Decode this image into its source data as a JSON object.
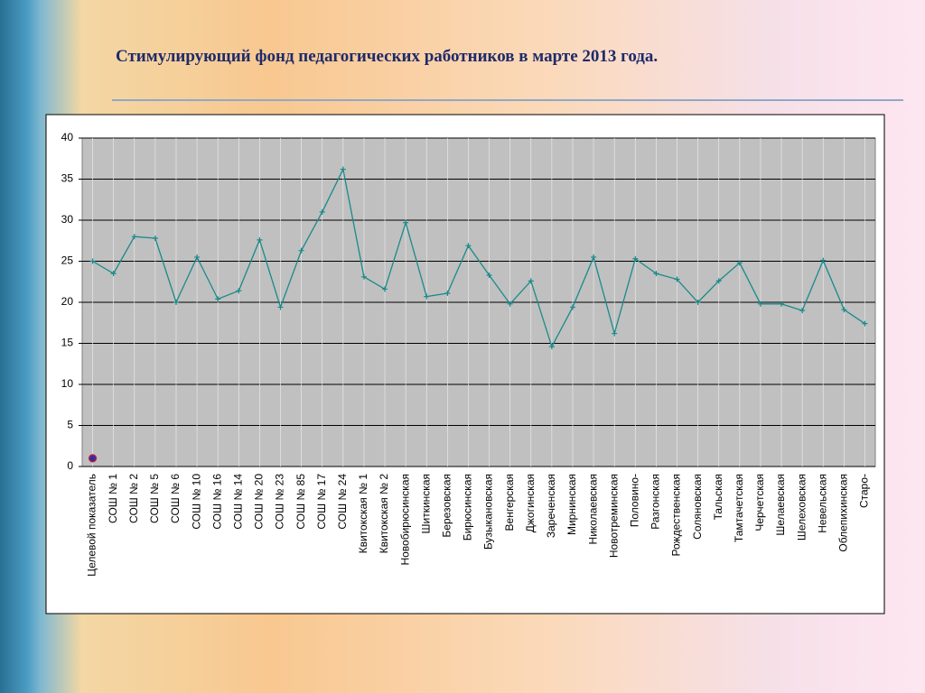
{
  "title": "Стимулирующий фонд педагогических работников в марте 2013 года.",
  "chart_data": {
    "type": "line",
    "categories": [
      "Целевой показатель",
      "СОШ № 1",
      "СОШ № 2",
      "СОШ № 5",
      "СОШ № 6",
      "СОШ № 10",
      "СОШ № 16",
      "СОШ № 14",
      "СОШ № 20",
      "СОШ № 23",
      "СОШ № 85",
      "СОШ № 17",
      "СОШ № 24",
      "Квитокская № 1",
      "Квитокская  № 2",
      "Новобирюсинская",
      "Шиткинская",
      "Березовская",
      "Бирюсинская",
      "Бузыкановская",
      "Венгерская",
      "Джогинская",
      "Зареченская",
      "Мирнинская",
      "Николаевская",
      "Новотреминская",
      "Половино-",
      "Разгонская",
      "Рождественская",
      "Соляновская",
      "Тальская",
      "Тамтачетская",
      "Черчетская",
      "Шелаевская",
      "Шелеховская",
      "Невельская",
      "Облепихинская",
      "Старо-"
    ],
    "series": [
      {
        "color": "#1a8a8a",
        "values": [
          25,
          23.5,
          28,
          27.8,
          20,
          25.5,
          20.4,
          21.4,
          27.6,
          19.4,
          26.3,
          31,
          36.2,
          23.1,
          21.6,
          29.7,
          20.7,
          21.1,
          26.9,
          23.3,
          19.8,
          22.6,
          14.6,
          19.4,
          25.5,
          16.2,
          25.3,
          23.5,
          22.8,
          20,
          22.6,
          24.8,
          19.8,
          19.8,
          19,
          25.1,
          19.1,
          17.4
        ]
      },
      {
        "color": "#3a2aa0",
        "values": [
          1,
          null,
          null,
          null,
          null,
          null,
          null,
          null,
          null,
          null,
          null,
          null,
          null,
          null,
          null,
          null,
          null,
          null,
          null,
          null,
          null,
          null,
          null,
          null,
          null,
          null,
          null,
          null,
          null,
          null,
          null,
          null,
          null,
          null,
          null,
          null,
          null,
          null
        ]
      }
    ],
    "ylim": [
      0,
      40
    ],
    "yticks": [
      0,
      5,
      10,
      15,
      20,
      25,
      30,
      35,
      40
    ],
    "grid": true
  }
}
